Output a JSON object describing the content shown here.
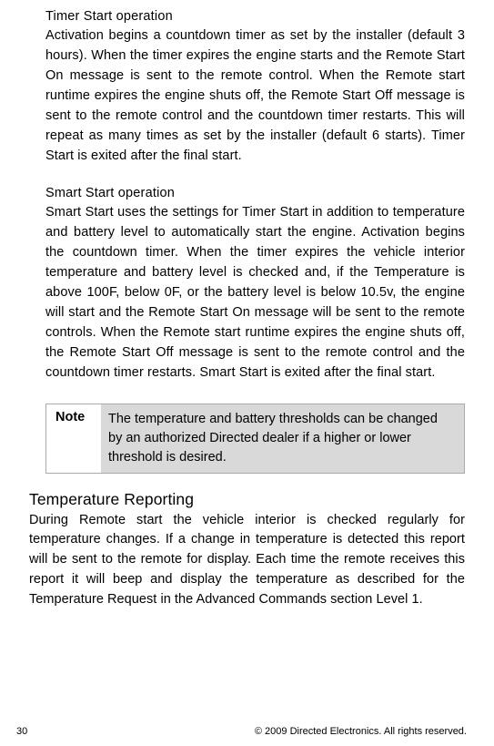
{
  "timerStart": {
    "title": "Timer Start operation",
    "body": "Activation begins a countdown timer as set by the installer (default 3 hours). When the timer expires the engine starts and the Remote Start On message is sent to the remote control. When the Remote start runtime expires the engine shuts off, the Remote Start Off message is sent to the remote control and the countdown timer restarts. This will repeat as many times as set by the installer (default 6 starts). Timer Start is exited after the final start."
  },
  "smartStart": {
    "title": "Smart Start operation",
    "body": "Smart Start uses the settings for Timer Start in addition to temperature and battery level to automatically start the engine. Activation begins the countdown timer. When the timer expires the vehicle interior temperature and battery level is checked and, if the Temperature is above 100F, below 0F, or  the battery level is below 10.5v, the engine will start and the Remote Start On message will be sent to the remote controls. When the Remote start runtime expires the engine shuts off, the Remote Start Off message is sent to the remote control and the countdown timer restarts. Smart Start is exited after the final start."
  },
  "note": {
    "label": "Note",
    "content": "The temperature and battery thresholds can be changed by an authorized Directed dealer if a higher or lower threshold is desired."
  },
  "tempReporting": {
    "title": "Temperature Reporting",
    "body": "During Remote start the vehicle interior is checked regularly for temperature changes. If a change in temperature is detected this report will be sent to the remote for display. Each time the remote receives this report it will beep and display the temperature as described for the Temperature Request in the Advanced Commands section Level 1."
  },
  "footer": {
    "pageNum": "30",
    "copyright": "© 2009 Directed Electronics. All rights reserved."
  }
}
